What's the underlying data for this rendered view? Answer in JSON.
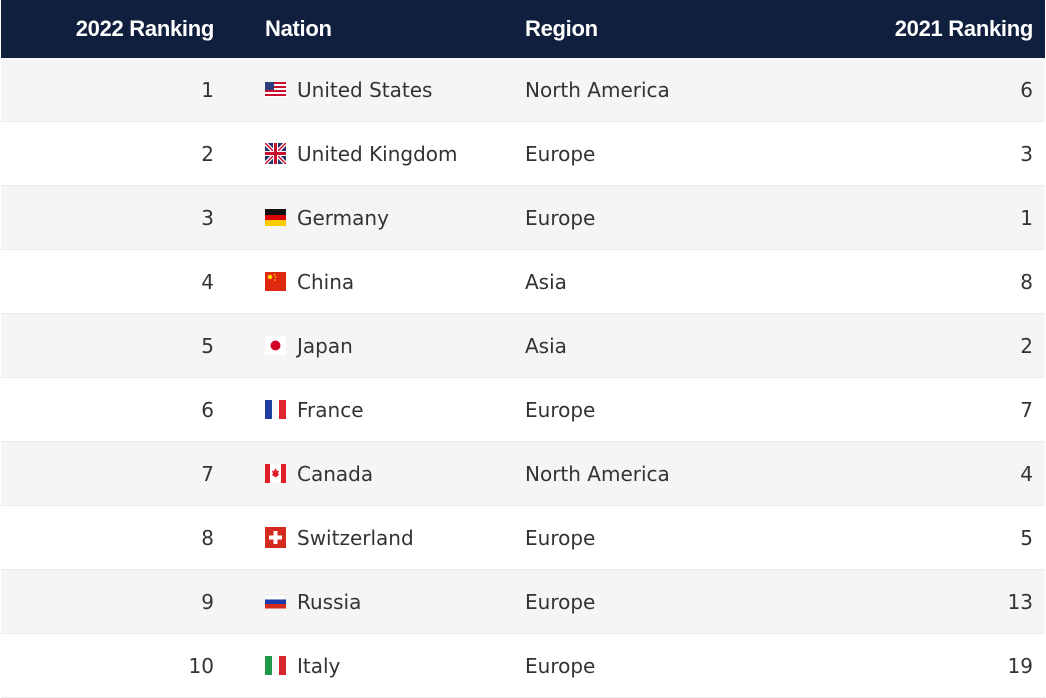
{
  "headers": {
    "rank_2022": "2022 Ranking",
    "nation": "Nation",
    "region": "Region",
    "rank_2021": "2021 Ranking"
  },
  "rows": [
    {
      "rank_2022": "1",
      "nation": "United States",
      "region": "North America",
      "rank_2021": "6",
      "flag": "flag-us-icon"
    },
    {
      "rank_2022": "2",
      "nation": "United Kingdom",
      "region": "Europe",
      "rank_2021": "3",
      "flag": "flag-uk-icon"
    },
    {
      "rank_2022": "3",
      "nation": "Germany",
      "region": "Europe",
      "rank_2021": "1",
      "flag": "flag-germany-icon"
    },
    {
      "rank_2022": "4",
      "nation": "China",
      "region": "Asia",
      "rank_2021": "8",
      "flag": "flag-china-icon"
    },
    {
      "rank_2022": "5",
      "nation": "Japan",
      "region": "Asia",
      "rank_2021": "2",
      "flag": "flag-japan-icon"
    },
    {
      "rank_2022": "6",
      "nation": "France",
      "region": "Europe",
      "rank_2021": "7",
      "flag": "flag-france-icon"
    },
    {
      "rank_2022": "7",
      "nation": "Canada",
      "region": "North America",
      "rank_2021": "4",
      "flag": "flag-canada-icon"
    },
    {
      "rank_2022": "8",
      "nation": "Switzerland",
      "region": "Europe",
      "rank_2021": "5",
      "flag": "flag-switzerland-icon"
    },
    {
      "rank_2022": "9",
      "nation": "Russia",
      "region": "Europe",
      "rank_2021": "13",
      "flag": "flag-russia-icon"
    },
    {
      "rank_2022": "10",
      "nation": "Italy",
      "region": "Europe",
      "rank_2021": "19",
      "flag": "flag-italy-icon"
    }
  ],
  "colors": {
    "header_bg": "#0f1f3d",
    "row_alt_bg": "#f5f5f5",
    "text": "#333333"
  }
}
